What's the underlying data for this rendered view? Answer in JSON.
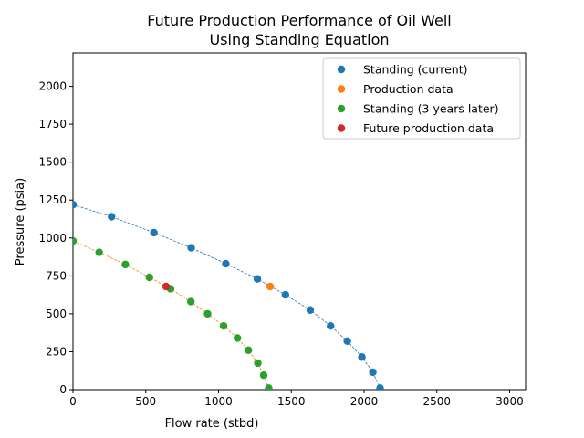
{
  "chart_data": {
    "type": "scatter",
    "title_lines": [
      "Future Production Performance of Oil Well",
      "Using Standing Equation"
    ],
    "xlabel": "Flow rate (stbd)",
    "ylabel": "Pressure (psia)",
    "xlim": [
      0,
      3110
    ],
    "ylim": [
      0,
      2220
    ],
    "xticks": [
      0,
      500,
      1000,
      1500,
      2000,
      2500,
      3000
    ],
    "yticks": [
      0,
      250,
      500,
      750,
      1000,
      1250,
      1500,
      1750,
      2000
    ],
    "legend_position": "top-right",
    "grid": false,
    "series": [
      {
        "name": "Standing (current)",
        "color": "#1f77b4",
        "line": "dashed",
        "points": [
          [
            0,
            1220
          ],
          [
            265,
            1140
          ],
          [
            556,
            1035
          ],
          [
            812,
            935
          ],
          [
            1050,
            830
          ],
          [
            1267,
            730
          ],
          [
            1460,
            625
          ],
          [
            1630,
            525
          ],
          [
            1770,
            420
          ],
          [
            1885,
            320
          ],
          [
            1985,
            215
          ],
          [
            2060,
            115
          ],
          [
            2110,
            10
          ]
        ]
      },
      {
        "name": "Production data",
        "color": "#ff7f0e",
        "line": "none",
        "points": [
          [
            1355,
            680
          ]
        ]
      },
      {
        "name": "Standing (3 years later)",
        "color": "#2ca02c",
        "line": "dashed",
        "line_color": "#ff7f0e",
        "points": [
          [
            0,
            980
          ],
          [
            180,
            905
          ],
          [
            360,
            825
          ],
          [
            525,
            740
          ],
          [
            670,
            665
          ],
          [
            810,
            580
          ],
          [
            925,
            500
          ],
          [
            1035,
            420
          ],
          [
            1130,
            340
          ],
          [
            1205,
            260
          ],
          [
            1270,
            175
          ],
          [
            1310,
            95
          ],
          [
            1345,
            10
          ]
        ]
      },
      {
        "name": "Future production data",
        "color": "#d62728",
        "line": "none",
        "points": [
          [
            640,
            680
          ]
        ]
      }
    ]
  }
}
